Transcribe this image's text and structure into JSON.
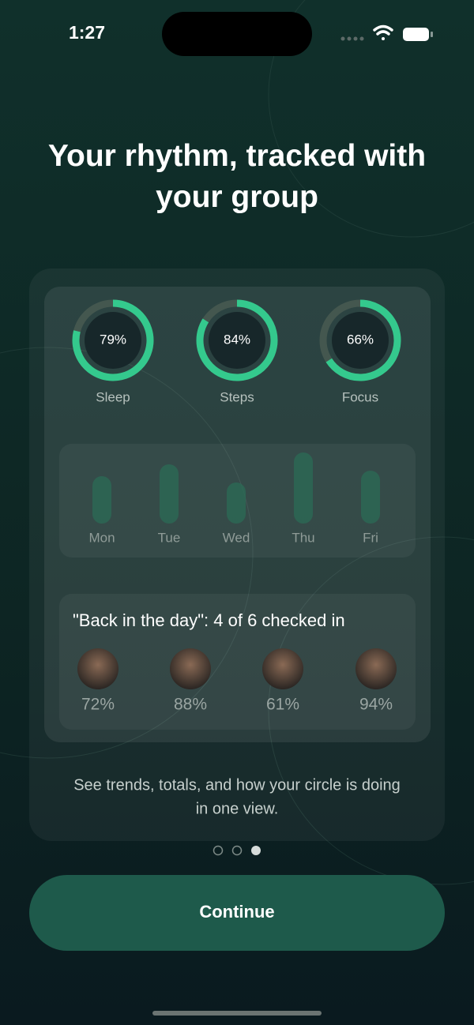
{
  "status_bar": {
    "time": "1:27"
  },
  "title": "Your rhythm, tracked with your group",
  "rings": [
    {
      "label": "Sleep",
      "value": 79,
      "value_label": "79%"
    },
    {
      "label": "Steps",
      "value": 84,
      "value_label": "84%"
    },
    {
      "label": "Focus",
      "value": 66,
      "value_label": "66%"
    }
  ],
  "week": [
    {
      "label": "Mon",
      "value": 60
    },
    {
      "label": "Tue",
      "value": 75
    },
    {
      "label": "Wed",
      "value": 52
    },
    {
      "label": "Thu",
      "value": 90
    },
    {
      "label": "Fri",
      "value": 67
    }
  ],
  "group": {
    "title": "\"Back in the day\": 4 of 6 checked in",
    "members": [
      "72%",
      "88%",
      "61%",
      "94%"
    ]
  },
  "caption": [
    "See trends, totals, and how your circle is doing",
    "in one view."
  ],
  "button": "Continue"
}
